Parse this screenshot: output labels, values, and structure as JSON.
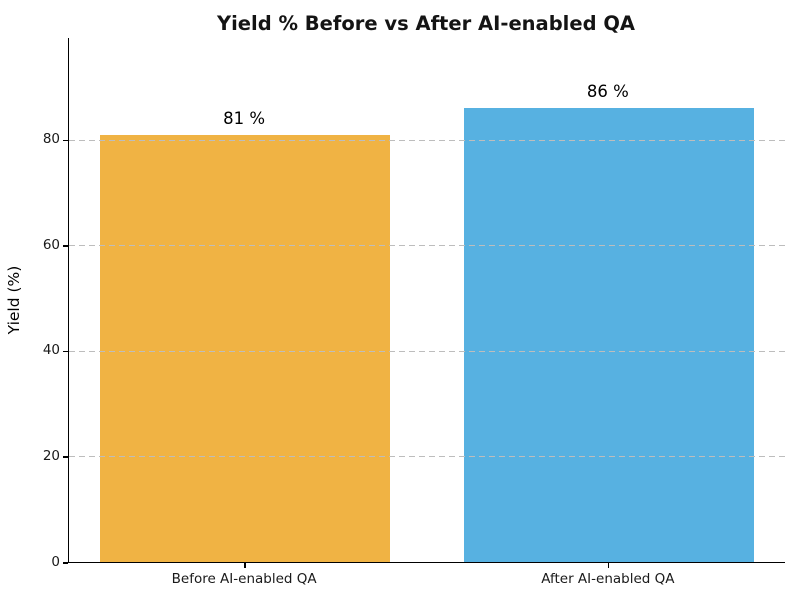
{
  "chart_data": {
    "type": "bar",
    "title": "Yield % Before vs After AI-enabled QA",
    "categories": [
      "Before AI-enabled QA",
      "After AI-enabled QA"
    ],
    "values": [
      81,
      86
    ],
    "value_labels": [
      "81 %",
      "86 %"
    ],
    "bar_colors": [
      "#f0b344",
      "#57b1e1"
    ],
    "xlabel": "",
    "ylabel": "Yield (%)",
    "ylim": [
      0,
      99.3
    ],
    "yticks": [
      0,
      20,
      40,
      60,
      80
    ],
    "grid": "horizontal dashed gridlines at yticks, drawn over bars",
    "gridline_color": "#bdbdbd",
    "legend": "none",
    "spines": [
      "left",
      "bottom"
    ]
  }
}
